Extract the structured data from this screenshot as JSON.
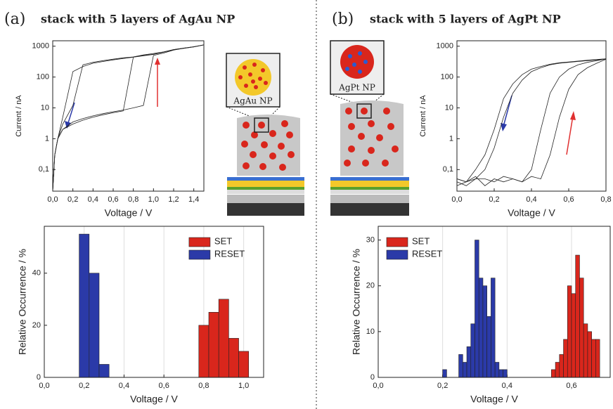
{
  "chart_data": [
    {
      "type": "line",
      "panel_label": "(a)",
      "title": "stack with 5 layers of AgAu NP",
      "annotation": "AgAu NP",
      "x_label": "Voltage / V",
      "y_label": "Current / nA",
      "ylog": true,
      "xlim": [
        0,
        1.5
      ],
      "ylim": [
        0.02,
        1500
      ],
      "xticks": [
        {
          "value": 0,
          "label": "0,0"
        },
        {
          "value": 0.2,
          "label": "0,2"
        },
        {
          "value": 0.4,
          "label": "0,4"
        },
        {
          "value": 0.6,
          "label": "0,6"
        },
        {
          "value": 0.8,
          "label": "0,8"
        },
        {
          "value": 1.0,
          "label": "1,0"
        },
        {
          "value": 1.2,
          "label": "1,2"
        },
        {
          "value": 1.4,
          "label": "1,4"
        }
      ],
      "yticks": [
        {
          "value": 0.1,
          "label": "0,1"
        },
        1,
        10,
        100,
        1000
      ],
      "x": [
        0,
        0.02,
        0.05,
        0.1,
        0.2,
        0.3,
        0.4,
        0.5,
        0.6,
        0.7,
        0.8,
        0.9,
        1.0,
        1.1,
        1.2,
        1.3,
        1.4,
        1.5
      ],
      "series": [
        {
          "color": "#222222",
          "values": [
            0.02,
            0.3,
            1,
            2,
            3.5,
            4.5,
            5.5,
            6.5,
            7.5,
            8.5,
            10,
            12,
            500,
            600,
            750,
            850,
            950,
            1100
          ]
        },
        {
          "color": "#222222",
          "values": [
            0.02,
            0.3,
            1,
            3,
            12,
            250,
            300,
            340,
            380,
            420,
            450,
            500,
            550,
            650,
            780,
            870,
            960,
            1100
          ]
        },
        {
          "color": "#222222",
          "values": [
            0.02,
            0.3,
            1,
            2,
            3,
            4,
            5,
            6,
            7,
            8,
            450,
            520,
            580,
            650,
            760,
            860,
            960,
            1100
          ]
        },
        {
          "color": "#222222",
          "values": [
            0.02,
            0.3,
            1,
            5,
            150,
            220,
            280,
            320,
            360,
            400,
            440,
            490,
            540,
            640,
            770,
            860,
            950,
            1100
          ]
        }
      ]
    },
    {
      "type": "histogram",
      "x_label": "Voltage / V",
      "y_label": "Relative Occurrence / %",
      "legend": "upper right",
      "grid": true,
      "xlim": [
        0,
        1.1
      ],
      "ylim": [
        0,
        58
      ],
      "xticks": [
        {
          "value": 0,
          "label": "0,0"
        },
        {
          "value": 0.2,
          "label": "0,2"
        },
        {
          "value": 0.4,
          "label": "0,4"
        },
        {
          "value": 0.6,
          "label": "0,6"
        },
        {
          "value": 0.8,
          "label": "0,8"
        },
        {
          "value": 1.0,
          "label": "1,0"
        }
      ],
      "yticks": [
        0,
        20,
        40
      ],
      "series": [
        {
          "name": "SET",
          "color": "#d9261c",
          "bins": [
            0.775,
            0.825,
            0.875,
            0.925,
            0.975,
            1.025
          ],
          "values": [
            20,
            25,
            30,
            15,
            10
          ]
        },
        {
          "name": "RESET",
          "color": "#2b3aa8",
          "bins": [
            0.175,
            0.225,
            0.275,
            0.325
          ],
          "values": [
            55,
            40,
            5
          ]
        }
      ]
    },
    {
      "type": "line",
      "panel_label": "(b)",
      "title": "stack with 5 layers of AgPt NP",
      "annotation": "AgPt NP",
      "x_label": "Voltage / V",
      "y_label": "Current / nA",
      "ylog": true,
      "xlim": [
        0,
        0.8
      ],
      "ylim": [
        0.02,
        1500
      ],
      "xticks": [
        {
          "value": 0,
          "label": "0,0"
        },
        {
          "value": 0.2,
          "label": "0,2"
        },
        {
          "value": 0.4,
          "label": "0,4"
        },
        {
          "value": 0.6,
          "label": "0,6"
        },
        {
          "value": 0.8,
          "label": "0,8"
        }
      ],
      "yticks": [
        {
          "value": 0.1,
          "label": "0,1"
        },
        1,
        10,
        100,
        1000
      ],
      "x": [
        0,
        0.05,
        0.1,
        0.15,
        0.2,
        0.25,
        0.3,
        0.35,
        0.4,
        0.45,
        0.5,
        0.55,
        0.6,
        0.65,
        0.7,
        0.75,
        0.8
      ],
      "series": [
        {
          "color": "#222222",
          "values": [
            0.05,
            0.04,
            0.06,
            0.03,
            0.05,
            0.04,
            0.05,
            0.04,
            0.06,
            0.05,
            0.3,
            5,
            40,
            120,
            200,
            280,
            380
          ]
        },
        {
          "color": "#222222",
          "values": [
            0.03,
            0.04,
            0.05,
            0.1,
            0.5,
            5,
            30,
            80,
            150,
            200,
            250,
            280,
            300,
            320,
            340,
            360,
            380
          ]
        },
        {
          "color": "#222222",
          "values": [
            0.04,
            0.03,
            0.05,
            0.05,
            0.04,
            0.06,
            0.05,
            0.04,
            0.1,
            2,
            30,
            100,
            180,
            250,
            300,
            340,
            390
          ]
        },
        {
          "color": "#222222",
          "values": [
            0.05,
            0.04,
            0.1,
            0.3,
            2,
            20,
            60,
            120,
            180,
            220,
            260,
            290,
            310,
            330,
            350,
            370,
            390
          ]
        }
      ]
    },
    {
      "type": "histogram",
      "x_label": "Voltage / V",
      "y_label": "Relative Occurrence / %",
      "legend": "upper left",
      "grid": true,
      "xlim": [
        0,
        0.72
      ],
      "ylim": [
        0,
        33
      ],
      "xticks": [
        {
          "value": 0,
          "label": "0,0"
        },
        {
          "value": 0.2,
          "label": "0,2"
        },
        {
          "value": 0.4,
          "label": "0,4"
        },
        {
          "value": 0.6,
          "label": "0,6"
        }
      ],
      "yticks": [
        0,
        10,
        20,
        30
      ],
      "series": [
        {
          "name": "SET",
          "color": "#d9261c",
          "bins": [
            0.5375,
            0.55,
            0.5625,
            0.575,
            0.5875,
            0.6,
            0.6125,
            0.625,
            0.6375,
            0.65,
            0.6625,
            0.675,
            0.6875
          ],
          "values": [
            1.7,
            3.3,
            5,
            8.3,
            20,
            18.3,
            26.7,
            21.7,
            11.7,
            10,
            8.3,
            8.3
          ]
        },
        {
          "name": "RESET",
          "color": "#2b3aa8",
          "bins": [
            0.2,
            0.2125,
            0.225,
            0.2375,
            0.25,
            0.2625,
            0.275,
            0.2875,
            0.3,
            0.3125,
            0.325,
            0.3375,
            0.35,
            0.3625,
            0.375,
            0.3875,
            0.4
          ],
          "values": [
            1.7,
            0,
            0,
            0,
            5,
            3.3,
            6.7,
            11.7,
            30,
            21.7,
            20,
            13.3,
            21.7,
            3.3,
            1.7,
            1.7
          ]
        }
      ]
    }
  ]
}
